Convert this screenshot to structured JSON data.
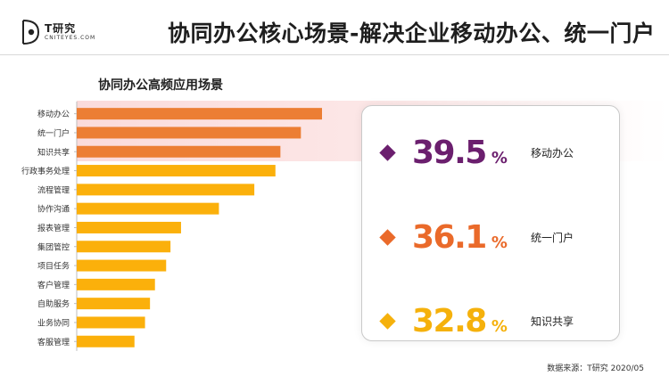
{
  "header": {
    "logo_name": "T研究",
    "logo_sub": "CNITEYES.COM",
    "title": "协同办公核心场景-解决企业移动办公、统一门户"
  },
  "chart_data": {
    "type": "bar",
    "orientation": "horizontal",
    "title": "协同办公高频应用场景",
    "categories": [
      "移动办公",
      "统一门户",
      "知识共享",
      "行政事务处理",
      "流程管理",
      "协作沟通",
      "报表管理",
      "集团管控",
      "项目任务",
      "客户管理",
      "自助服务",
      "业务协同",
      "客服管理"
    ],
    "values": [
      39.5,
      36.1,
      32.8,
      32.0,
      28.6,
      22.9,
      16.8,
      15.1,
      14.4,
      12.6,
      11.8,
      11.0,
      9.3
    ],
    "highlight_count": 3,
    "xlim": [
      0,
      40
    ],
    "colors": {
      "highlight": "#ec7e34",
      "default": "#fbb00b"
    }
  },
  "stats": [
    {
      "value": "39.5",
      "unit": "%",
      "label": "移动办公",
      "color": "#6b1f6e"
    },
    {
      "value": "36.1",
      "unit": "%",
      "label": "统一门户",
      "color": "#ea6a2a"
    },
    {
      "value": "32.8",
      "unit": "%",
      "label": "知识共享",
      "color": "#f5b10c"
    }
  ],
  "source": "数据来源：T研究 2020/05"
}
